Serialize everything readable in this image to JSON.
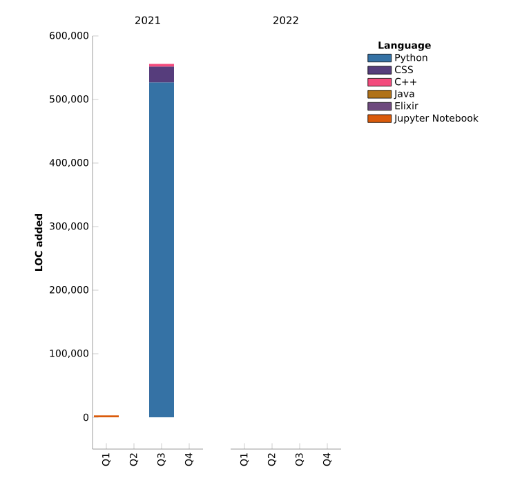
{
  "chart_data": [
    {
      "type": "bar",
      "title": "2021",
      "ylabel": "LOC added",
      "categories": [
        "Q1",
        "Q2",
        "Q3",
        "Q4"
      ],
      "stacked": true,
      "ylim": [
        -50000,
        600000
      ],
      "yticks": [
        0,
        {
          "value": 100000,
          "label": "100,000"
        },
        {
          "value": 200000,
          "label": "200,000"
        },
        {
          "value": 300000,
          "label": "300,000"
        },
        {
          "value": 400000,
          "label": "400,000"
        },
        {
          "value": 500000,
          "label": "500,000"
        },
        {
          "value": 600000,
          "label": "600,000"
        }
      ],
      "series": [
        {
          "color": "#3572a5",
          "values": [
            null,
            null,
            527000,
            null
          ]
        },
        {
          "color": "#563d7c",
          "values": [
            null,
            null,
            25000,
            null
          ]
        },
        {
          "color": "#f34b7d",
          "values": [
            null,
            null,
            4000,
            null
          ]
        },
        {
          "color": "#b07219",
          "values": [
            null,
            null,
            null,
            null
          ]
        },
        {
          "color": "#6e4a7e",
          "values": [
            null,
            null,
            null,
            null
          ]
        },
        {
          "color": "#da5b0b",
          "values": [
            3000,
            null,
            null,
            null
          ]
        }
      ]
    },
    {
      "type": "bar",
      "title": "2022",
      "categories": [
        "Q1",
        "Q2",
        "Q3",
        "Q4"
      ],
      "stacked": true,
      "ylim": [
        -50000,
        600000
      ],
      "tick_labels": "x",
      "legend": "top right",
      "legend_title": "Language",
      "series": [
        {
          "name": "Python",
          "color": "#3572a5",
          "values": [
            null,
            null,
            null,
            null
          ]
        },
        {
          "name": "CSS",
          "color": "#563d7c",
          "values": [
            null,
            null,
            null,
            null
          ]
        },
        {
          "name": "C++",
          "color": "#f34b7d",
          "values": [
            null,
            null,
            null,
            null
          ]
        },
        {
          "name": "Java",
          "color": "#b07219",
          "values": [
            null,
            null,
            null,
            null
          ]
        },
        {
          "name": "Elixir",
          "color": "#6e4a7e",
          "values": [
            null,
            null,
            null,
            null
          ]
        },
        {
          "name": "Jupyter Notebook",
          "color": "#da5b0b",
          "values": [
            null,
            null,
            null,
            null
          ]
        }
      ]
    }
  ]
}
